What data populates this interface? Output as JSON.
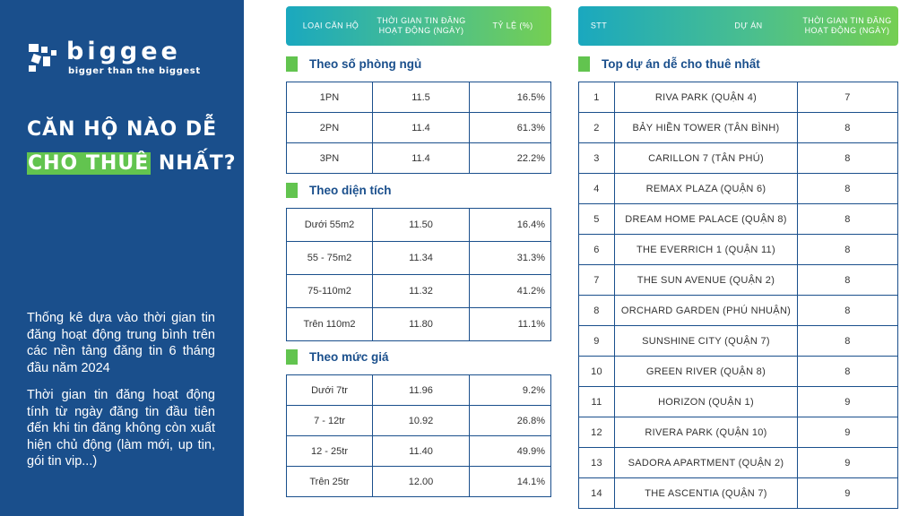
{
  "brand": {
    "name": "biggee",
    "tagline": "bigger than the biggest"
  },
  "headline": {
    "line1": "CĂN HỘ NÀO DỄ",
    "line2_highlight": "CHO THUÊ",
    "line2_rest": " NHẤT?"
  },
  "description": {
    "p1": "Thống kê dựa vào thời gian tin đăng hoạt động trung bình trên các nền tảng đăng tin 6 tháng đầu năm 2024",
    "p2": "Thời gian tin đăng hoạt động tính từ ngày đăng tin đầu tiên đến khi tin đăng không còn xuất hiện chủ động (làm mới, up tin, gói tin vip...)"
  },
  "left_table": {
    "headers": [
      "LOẠI CĂN HỘ",
      "THỜI GIAN TIN ĐĂNG HOẠT ĐỘNG (NGÀY)",
      "TỶ LỆ (%)"
    ],
    "sections": [
      {
        "title": "Theo số phòng ngủ",
        "rows": [
          [
            "1PN",
            "11.5",
            "16.5%"
          ],
          [
            "2PN",
            "11.4",
            "61.3%"
          ],
          [
            "3PN",
            "11.4",
            "22.2%"
          ]
        ]
      },
      {
        "title": "Theo diện tích",
        "rows": [
          [
            "Dưới 55m2",
            "11.50",
            "16.4%"
          ],
          [
            "55 - 75m2",
            "11.34",
            "31.3%"
          ],
          [
            "75-110m2",
            "11.32",
            "41.2%"
          ],
          [
            "Trên 110m2",
            "11.80",
            "11.1%"
          ]
        ]
      },
      {
        "title": "Theo mức giá",
        "rows": [
          [
            "Dưới 7tr",
            "11.96",
            "9.2%"
          ],
          [
            "7 - 12tr",
            "10.92",
            "26.8%"
          ],
          [
            "12 - 25tr",
            "11.40",
            "49.9%"
          ],
          [
            "Trên 25tr",
            "12.00",
            "14.1%"
          ]
        ]
      }
    ]
  },
  "right_table": {
    "headers": [
      "STT",
      "DỰ ÁN",
      "THỜI GIAN TIN ĐĂNG HOẠT ĐỘNG (NGÀY)"
    ],
    "title": "Top dự án dễ cho thuê nhất",
    "rows": [
      [
        "1",
        "RIVA PARK (QUẬN 4)",
        "7"
      ],
      [
        "2",
        "BẢY HIỀN TOWER (TÂN BÌNH)",
        "8"
      ],
      [
        "3",
        "CARILLON 7 (TÂN PHÚ)",
        "8"
      ],
      [
        "4",
        "REMAX PLAZA (QUẬN 6)",
        "8"
      ],
      [
        "5",
        "DREAM HOME PALACE (QUẬN 8)",
        "8"
      ],
      [
        "6",
        "THE EVERRICH 1 (QUẬN 11)",
        "8"
      ],
      [
        "7",
        "THE SUN AVENUE (QUẬN 2)",
        "8"
      ],
      [
        "8",
        "ORCHARD GARDEN (PHÚ NHUẬN)",
        "8"
      ],
      [
        "9",
        "SUNSHINE CITY (QUẬN 7)",
        "8"
      ],
      [
        "10",
        "GREEN RIVER (QUẬN 8)",
        "8"
      ],
      [
        "11",
        "HORIZON (QUẬN 1)",
        "9"
      ],
      [
        "12",
        "RIVERA PARK (QUẬN 10)",
        "9"
      ],
      [
        "13",
        "SADORA APARTMENT (QUẬN 2)",
        "9"
      ],
      [
        "14",
        "THE ASCENTIA (QUẬN 7)",
        "9"
      ]
    ]
  },
  "colors": {
    "navy": "#1a4f8c",
    "green": "#62c44f",
    "teal": "#1aa8bf"
  }
}
